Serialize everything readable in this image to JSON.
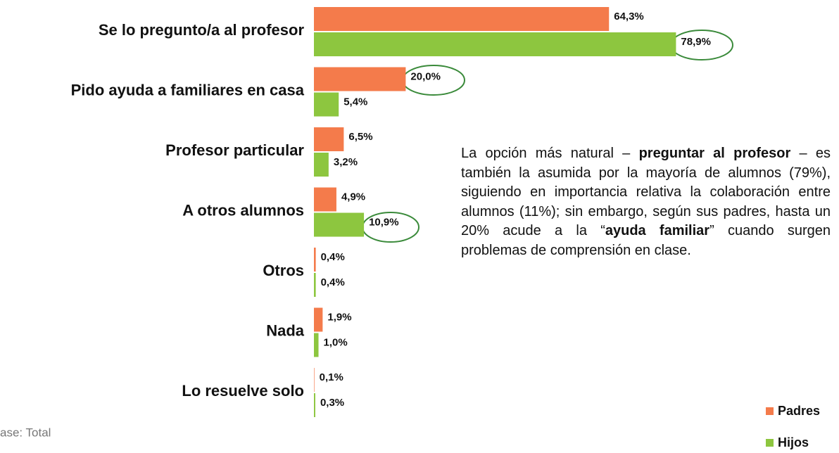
{
  "chart_data": {
    "type": "barh",
    "categories": [
      "Se lo pregunto/a al profesor",
      "Pido ayuda a familiares en casa",
      "Profesor particular",
      "A otros alumnos",
      "Otros",
      "Nada",
      "Lo resuelve solo"
    ],
    "series": [
      {
        "name": "Padres",
        "color": "#f47b4b",
        "values": [
          64.3,
          20.0,
          6.5,
          4.9,
          0.4,
          1.9,
          0.1
        ],
        "value_labels": [
          "64,3%",
          "20,0%",
          "6,5%",
          "4,9%",
          "0,4%",
          "1,9%",
          "0,1%"
        ]
      },
      {
        "name": "Hijos",
        "color": "#8dc63f",
        "values": [
          78.9,
          5.4,
          3.2,
          10.9,
          0.4,
          1.0,
          0.3
        ],
        "value_labels": [
          "78,9%",
          "5,4%",
          "3,2%",
          "10,9%",
          "0,4%",
          "1,0%",
          "0,3%"
        ]
      }
    ],
    "annotation": [
      "La opción más natural – ",
      "preguntar al profesor",
      " – es también la asumida por la mayoría de alumnos (79%), siguiendo en importancia relativa la colaboración entre alumnos (11%); sin embargo, según sus padres, hasta un 20% acude a la “",
      "ayuda familiar",
      "” cuando surgen problemas de comprensión en clase."
    ],
    "footnote": "ase: Total",
    "legend": "bottom-right"
  }
}
